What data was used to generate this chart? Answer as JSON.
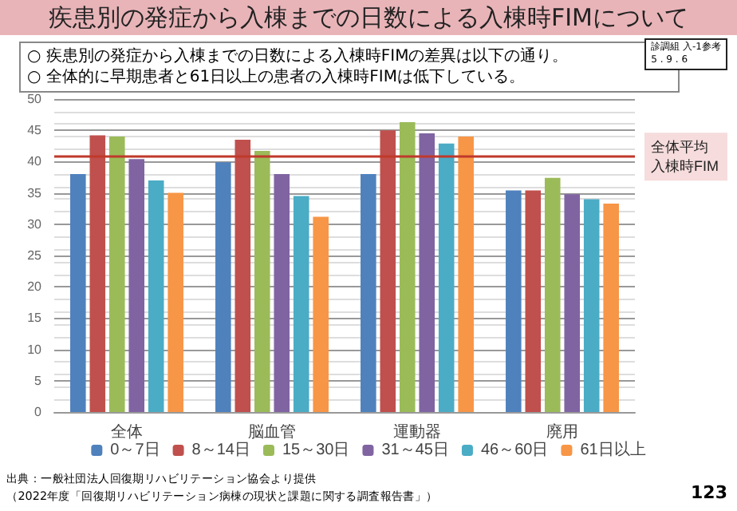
{
  "chart_data": {
    "type": "bar",
    "title": "疾患別の発症から入棟までの日数による入棟時FIMについて",
    "subtitle": "○ 疾患別の発症から入棟までの日数による入棟時FIMの差異は以下の通り。\n○ 全体的に早期患者と61日以上の患者の入棟時FIMは低下している。",
    "categories": [
      "全体",
      "脳血管",
      "運動器",
      "廃用"
    ],
    "series": [
      {
        "name": "0～7日",
        "color": "#4f81bd",
        "values": [
          38.0,
          39.9,
          38.0,
          35.4
        ]
      },
      {
        "name": "8～14日",
        "color": "#c0504d",
        "values": [
          44.2,
          43.5,
          45.0,
          35.4
        ]
      },
      {
        "name": "15～30日",
        "color": "#9bbb59",
        "values": [
          44.0,
          41.7,
          46.3,
          37.4
        ]
      },
      {
        "name": "31～45日",
        "color": "#8064a2",
        "values": [
          40.4,
          38.0,
          44.5,
          34.8
        ]
      },
      {
        "name": "46～60日",
        "color": "#4bacc6",
        "values": [
          37.0,
          34.5,
          42.9,
          34.0
        ]
      },
      {
        "name": "61日以上",
        "color": "#f79646",
        "values": [
          35.0,
          31.2,
          44.0,
          33.3
        ]
      }
    ],
    "ylim": [
      0,
      50
    ],
    "yticks": [
      0,
      5,
      10,
      15,
      20,
      25,
      30,
      35,
      40,
      45,
      50
    ],
    "grid": true,
    "legend": "bottom",
    "ref_lines": [
      {
        "axis": "y",
        "value": 40.8,
        "label": "全体平均入棟時FIM",
        "color": "#c0392b"
      }
    ],
    "annotations": [
      "診調組 入-1参考\n5 . 9 . 6",
      "出典：一般社団法人回復期リハビリテーション協会より提供",
      "（2022年度「回復期リハビリテーション病棟の現状と課題に関する調査報告書」）",
      "123"
    ]
  }
}
